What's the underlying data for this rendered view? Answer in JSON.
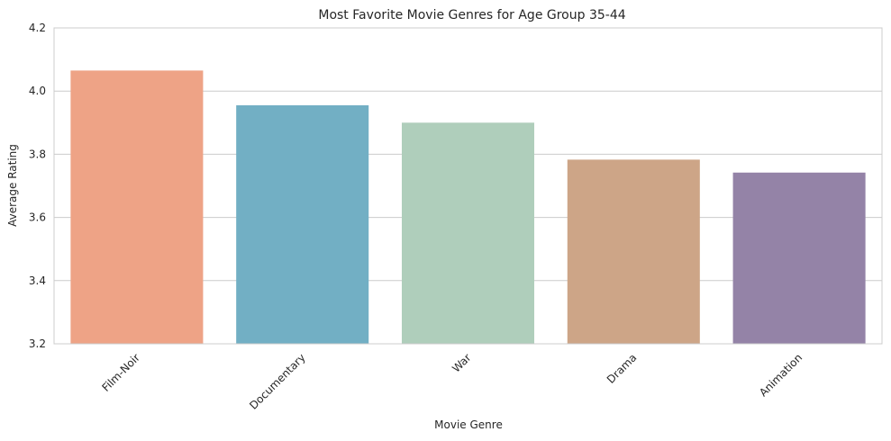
{
  "chart_data": {
    "type": "bar",
    "title": "Most Favorite Movie Genres for Age Group 35-44",
    "xlabel": "Movie Genre",
    "ylabel": "Average Rating",
    "categories": [
      "Film-Noir",
      "Documentary",
      "War",
      "Drama",
      "Animation"
    ],
    "values": [
      4.065,
      3.955,
      3.9,
      3.783,
      3.742
    ],
    "colors": [
      "#eea386",
      "#72afc4",
      "#afcebb",
      "#cda587",
      "#9483a7"
    ],
    "ylim": [
      3.2,
      4.2
    ],
    "yticks": [
      "3.2",
      "3.4",
      "3.6",
      "3.8",
      "4.0",
      "4.2"
    ],
    "grid": "horizontal",
    "legend": "none"
  }
}
